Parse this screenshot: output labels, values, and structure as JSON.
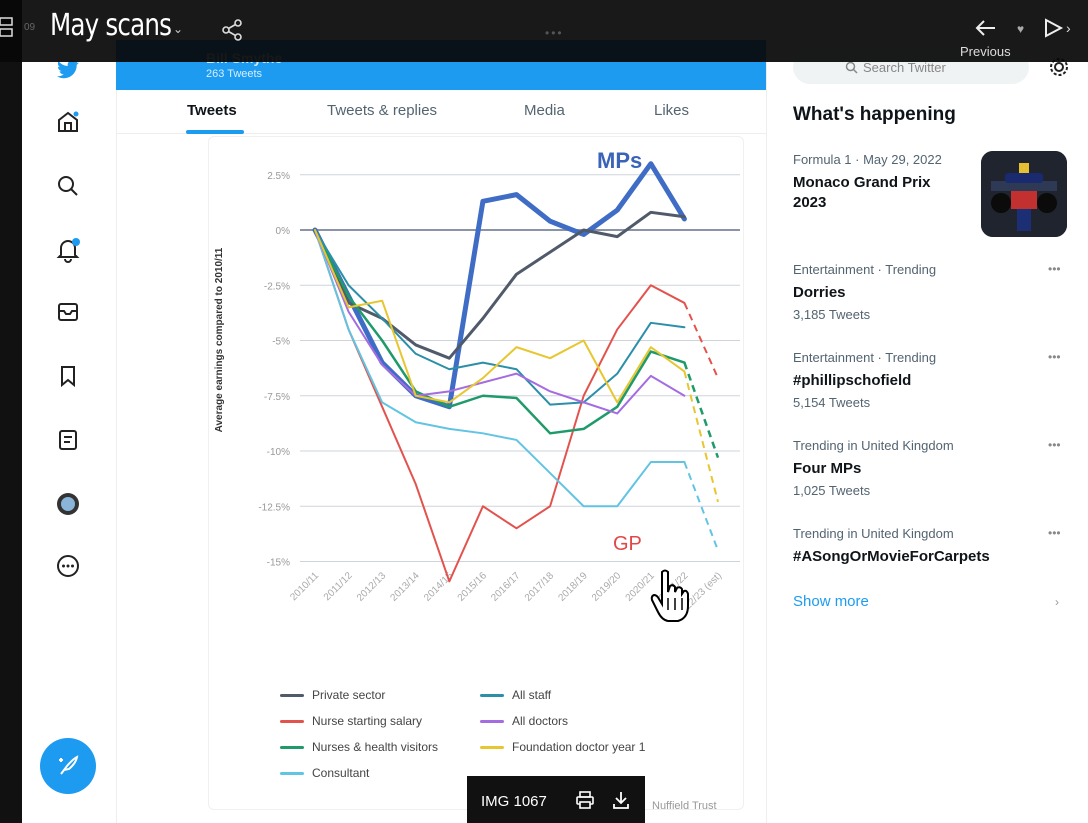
{
  "topbar": {
    "title": "May scans",
    "previous_label": "Previous",
    "tiny_text": "09"
  },
  "profile": {
    "name": "Bill Smythe",
    "tweet_count": "263 Tweets"
  },
  "tabs": [
    {
      "label": "Tweets"
    },
    {
      "label": "Tweets & replies"
    },
    {
      "label": "Media"
    },
    {
      "label": "Likes"
    }
  ],
  "search": {
    "placeholder": "Search Twitter"
  },
  "sidebar": {
    "heading": "What's happening",
    "trends": [
      {
        "meta": "Formula 1 · May 29, 2022",
        "topic": "Monaco Grand Prix 2023",
        "count": ""
      },
      {
        "meta": "Entertainment · Trending",
        "topic": "Dorries",
        "count": "3,185 Tweets"
      },
      {
        "meta": "Entertainment · Trending",
        "topic": "#phillipschofield",
        "count": "5,154 Tweets"
      },
      {
        "meta": "Trending in United Kingdom",
        "topic": "Four MPs",
        "count": "1,025 Tweets"
      },
      {
        "meta": "Trending in United Kingdom",
        "topic": "#ASongOrMovieForCarpets",
        "count": ""
      }
    ],
    "show_more": "Show more"
  },
  "image_bar": {
    "label": "IMG 1067"
  },
  "chart_data": {
    "type": "line",
    "ylabel": "Average earnings compared to 2010/11",
    "ylim": [
      -15,
      3.5
    ],
    "yticks": [
      2.5,
      0,
      -2.5,
      -5,
      -7.5,
      -10,
      -12.5,
      -15
    ],
    "ytick_labels": [
      "2.5%",
      "0%",
      "-2.5%",
      "-5%",
      "-7.5%",
      "-10%",
      "-12.5%",
      "-15%"
    ],
    "categories": [
      "2010/11",
      "2011/12",
      "2012/13",
      "2013/14",
      "2014/15",
      "2015/16",
      "2016/17",
      "2017/18",
      "2018/19",
      "2019/20",
      "2020/21",
      "2021/22",
      "2022/23 (est)"
    ],
    "annotations": [
      {
        "text": "MPs",
        "color": "#3a64b8"
      },
      {
        "text": "GP",
        "color": "#e04848"
      }
    ],
    "source": "Nuffield Trust",
    "series": [
      {
        "name": "MPs",
        "color": "#3f6cc4",
        "width": 5,
        "values": [
          0,
          -3,
          -6,
          -7.5,
          -8,
          1.3,
          1.6,
          0.4,
          -0.2,
          0.9,
          3,
          0.5,
          null
        ],
        "legend": false
      },
      {
        "name": "Private sector",
        "color": "#505a6a",
        "width": 3,
        "values": [
          0,
          -3.3,
          -4,
          -5.2,
          -5.8,
          -4,
          -2,
          -1,
          0,
          -0.3,
          0.8,
          0.6,
          null
        ],
        "legend": true
      },
      {
        "name": "Nurse starting salary",
        "color": "#e3534d",
        "width": 2,
        "values": [
          0,
          -4.5,
          -8,
          -11.5,
          -15.9,
          -12.5,
          -13.5,
          -12.5,
          -7.5,
          -4.5,
          -2.5,
          -3.3,
          -6.7
        ],
        "legend": true
      },
      {
        "name": "Nurses & health visitors",
        "color": "#1f9a6a",
        "width": 2.5,
        "values": [
          0,
          -3,
          -5,
          -7.3,
          -8,
          -7.5,
          -7.6,
          -9.2,
          -9,
          -8,
          -5.5,
          -6,
          -10.3
        ],
        "legend": true
      },
      {
        "name": "Consultant",
        "color": "#62c4e3",
        "width": 2,
        "values": [
          0,
          -4.5,
          -7.8,
          -8.7,
          -9,
          -9.2,
          -9.5,
          -11,
          -12.5,
          -12.5,
          -10.5,
          -10.5,
          -14.5
        ],
        "legend": true
      },
      {
        "name": "All staff",
        "color": "#2b8fa8",
        "width": 2,
        "values": [
          0,
          -2.5,
          -4,
          -5.6,
          -6.3,
          -6,
          -6.3,
          -7.9,
          -7.8,
          -6.5,
          -4.2,
          -4.4,
          null
        ],
        "legend": true
      },
      {
        "name": "All doctors",
        "color": "#a46ce0",
        "width": 2,
        "values": [
          0,
          -3.7,
          -6.1,
          -7.5,
          -7.3,
          -6.9,
          -6.5,
          -7.3,
          -7.8,
          -8.3,
          -6.6,
          -7.5,
          null
        ],
        "legend": true
      },
      {
        "name": "Foundation doctor year 1",
        "color": "#e8c630",
        "width": 2,
        "values": [
          0,
          -3.5,
          -3.2,
          -7.5,
          -7.8,
          -6.7,
          -5.3,
          -5.8,
          -5,
          -7.8,
          -5.3,
          -6.4,
          -12.3
        ],
        "legend": true
      }
    ]
  }
}
